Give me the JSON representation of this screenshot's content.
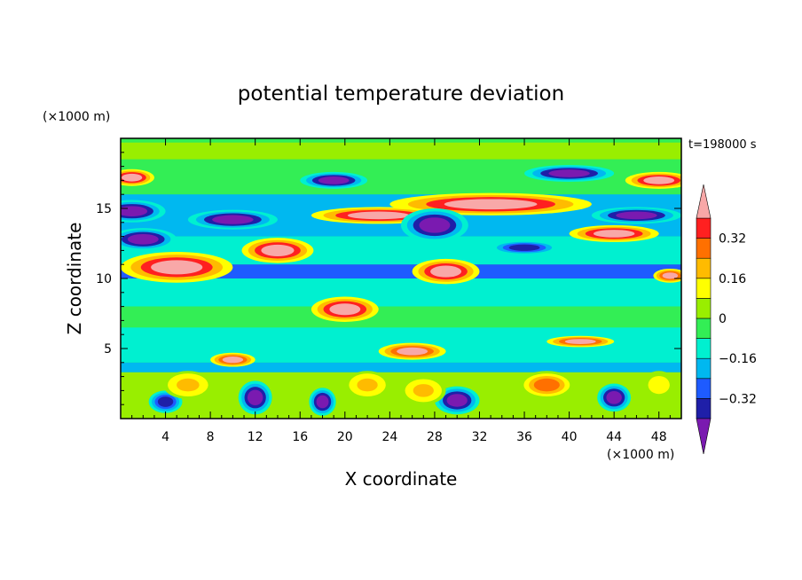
{
  "chart_data": {
    "type": "heatmap",
    "title": "potential temperature deviation",
    "xlabel": "X coordinate",
    "ylabel": "Z coordinate",
    "x_unit": "(×1000 m)",
    "y_unit": "(×1000 m)",
    "time_label": "t=198000 s",
    "xlim": [
      0,
      50
    ],
    "ylim": [
      0,
      20
    ],
    "xticks": [
      4,
      8,
      12,
      16,
      20,
      24,
      28,
      32,
      36,
      40,
      44,
      48
    ],
    "yticks": [
      5,
      10,
      15
    ],
    "colorbar": {
      "levels": [
        -0.4,
        -0.32,
        -0.24,
        -0.16,
        -0.08,
        0,
        0.08,
        0.16,
        0.24,
        0.32,
        0.4
      ],
      "labels": [
        {
          "value": 0.32,
          "text": "0.32"
        },
        {
          "value": 0.16,
          "text": "0.16"
        },
        {
          "value": 0,
          "text": "0"
        },
        {
          "value": -0.16,
          "text": "−0.16"
        },
        {
          "value": -0.32,
          "text": "−0.32"
        }
      ],
      "colors": [
        "#1f1fa8",
        "#1e5bff",
        "#00b8f0",
        "#00f0d0",
        "#33ee55",
        "#99ee00",
        "#ffff00",
        "#ffbb00",
        "#ff7000",
        "#ff2020"
      ],
      "under_color": "#7a1ab0",
      "over_color": "#f8a8a8"
    },
    "features": [
      {
        "x": 33,
        "z": 15.3,
        "rx": 9,
        "rz": 0.8,
        "value": 0.45
      },
      {
        "x": 23,
        "z": 14.5,
        "rx": 6,
        "rz": 0.6,
        "value": 0.45
      },
      {
        "x": 14,
        "z": 12.0,
        "rx": 3.2,
        "rz": 0.9,
        "value": 0.45
      },
      {
        "x": 5,
        "z": 10.8,
        "rx": 5,
        "rz": 1.1,
        "value": 0.45
      },
      {
        "x": 1,
        "z": 17.2,
        "rx": 2,
        "rz": 0.6,
        "value": 0.45
      },
      {
        "x": 48,
        "z": 17.0,
        "rx": 3,
        "rz": 0.6,
        "value": 0.45
      },
      {
        "x": 44,
        "z": 13.2,
        "rx": 4,
        "rz": 0.6,
        "value": 0.45
      },
      {
        "x": 29,
        "z": 10.5,
        "rx": 3,
        "rz": 0.9,
        "value": 0.45
      },
      {
        "x": 20,
        "z": 7.8,
        "rx": 3,
        "rz": 0.9,
        "value": 0.45
      },
      {
        "x": 26,
        "z": 4.8,
        "rx": 3,
        "rz": 0.6,
        "value": 0.4
      },
      {
        "x": 41,
        "z": 5.5,
        "rx": 3,
        "rz": 0.4,
        "value": 0.4
      },
      {
        "x": 10,
        "z": 4.2,
        "rx": 2,
        "rz": 0.5,
        "value": 0.4
      },
      {
        "x": 49,
        "z": 10.2,
        "rx": 1.5,
        "rz": 0.5,
        "value": 0.4
      },
      {
        "x": 1,
        "z": 14.8,
        "rx": 3,
        "rz": 0.8,
        "value": -0.45
      },
      {
        "x": 10,
        "z": 14.2,
        "rx": 4,
        "rz": 0.7,
        "value": -0.45
      },
      {
        "x": 2,
        "z": 12.8,
        "rx": 3,
        "rz": 0.8,
        "value": -0.45
      },
      {
        "x": 28,
        "z": 13.8,
        "rx": 3,
        "rz": 1.2,
        "value": -0.45
      },
      {
        "x": 19,
        "z": 17.0,
        "rx": 3,
        "rz": 0.6,
        "value": -0.45
      },
      {
        "x": 40,
        "z": 17.5,
        "rx": 4,
        "rz": 0.6,
        "value": -0.45
      },
      {
        "x": 46,
        "z": 14.5,
        "rx": 4,
        "rz": 0.6,
        "value": -0.45
      },
      {
        "x": 36,
        "z": 12.2,
        "rx": 3,
        "rz": 0.5,
        "value": -0.4
      },
      {
        "x": 12,
        "z": 1.5,
        "rx": 1.5,
        "rz": 1.2,
        "value": -0.45
      },
      {
        "x": 30,
        "z": 1.3,
        "rx": 2,
        "rz": 1.0,
        "value": -0.45
      },
      {
        "x": 44,
        "z": 1.5,
        "rx": 1.5,
        "rz": 1.0,
        "value": -0.45
      },
      {
        "x": 18,
        "z": 1.2,
        "rx": 1.2,
        "rz": 1.0,
        "value": -0.45
      },
      {
        "x": 4,
        "z": 1.2,
        "rx": 1.5,
        "rz": 0.8,
        "value": -0.4
      },
      {
        "x": 38,
        "z": 2.4,
        "rx": 2.5,
        "rz": 1.0,
        "value": 0.3
      },
      {
        "x": 6,
        "z": 2.4,
        "rx": 2.2,
        "rz": 1.0,
        "value": 0.2
      },
      {
        "x": 22,
        "z": 2.4,
        "rx": 2,
        "rz": 1.0,
        "value": 0.2
      },
      {
        "x": 27,
        "z": 2.0,
        "rx": 2,
        "rz": 1.0,
        "value": 0.2
      },
      {
        "x": 48,
        "z": 2.4,
        "rx": 1.5,
        "rz": 1.0,
        "value": 0.15
      }
    ]
  }
}
